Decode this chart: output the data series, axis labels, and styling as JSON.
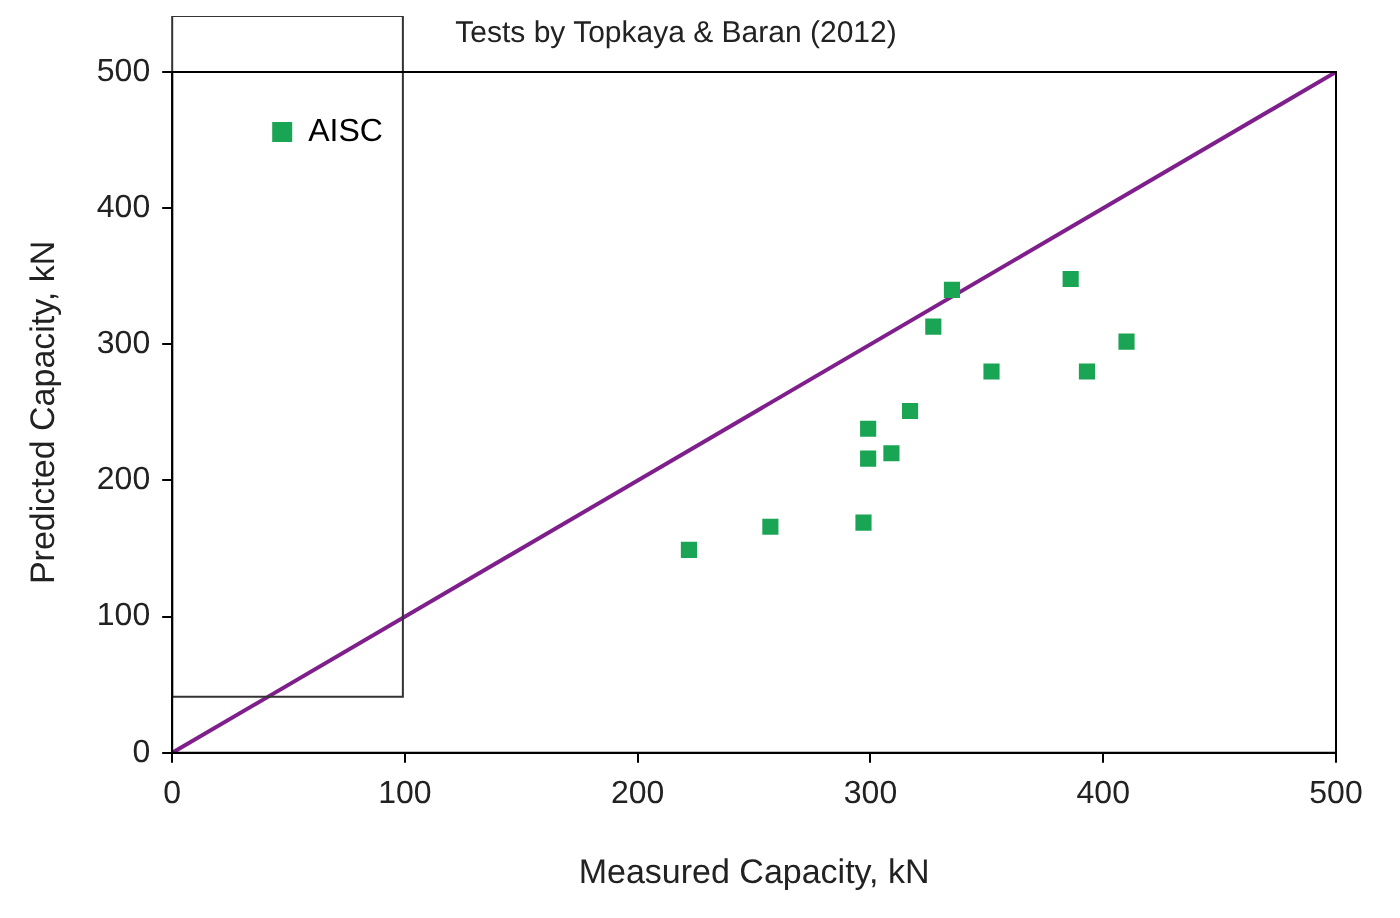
{
  "chart_data": {
    "type": "scatter",
    "title": "Tests by Topkaya & Baran (2012)",
    "xlabel": "Measured Capacity, kN",
    "ylabel": "Predicted Capacity, kN",
    "xlim": [
      0,
      500
    ],
    "xticks": [
      0,
      100,
      200,
      300,
      400,
      500
    ],
    "ylim": [
      0,
      500
    ],
    "yticks": [
      0,
      100,
      200,
      300,
      400,
      500
    ],
    "grid": false,
    "legend": "top left",
    "marker": "square",
    "series": [
      {
        "name": "AISC",
        "color": "#1aa555",
        "x": [
          222,
          257,
          297,
          299,
          299,
          309,
          317,
          327,
          335,
          352,
          386,
          393,
          410
        ],
        "values": [
          149,
          166,
          169,
          216,
          238,
          220,
          251,
          313,
          340,
          280,
          348,
          280,
          302
        ]
      },
      {
        "type": "line",
        "color": "#7f1f8c",
        "x": [
          0,
          500
        ],
        "values": [
          0,
          500
        ],
        "marker": "none",
        "line_style": "solid"
      }
    ]
  }
}
